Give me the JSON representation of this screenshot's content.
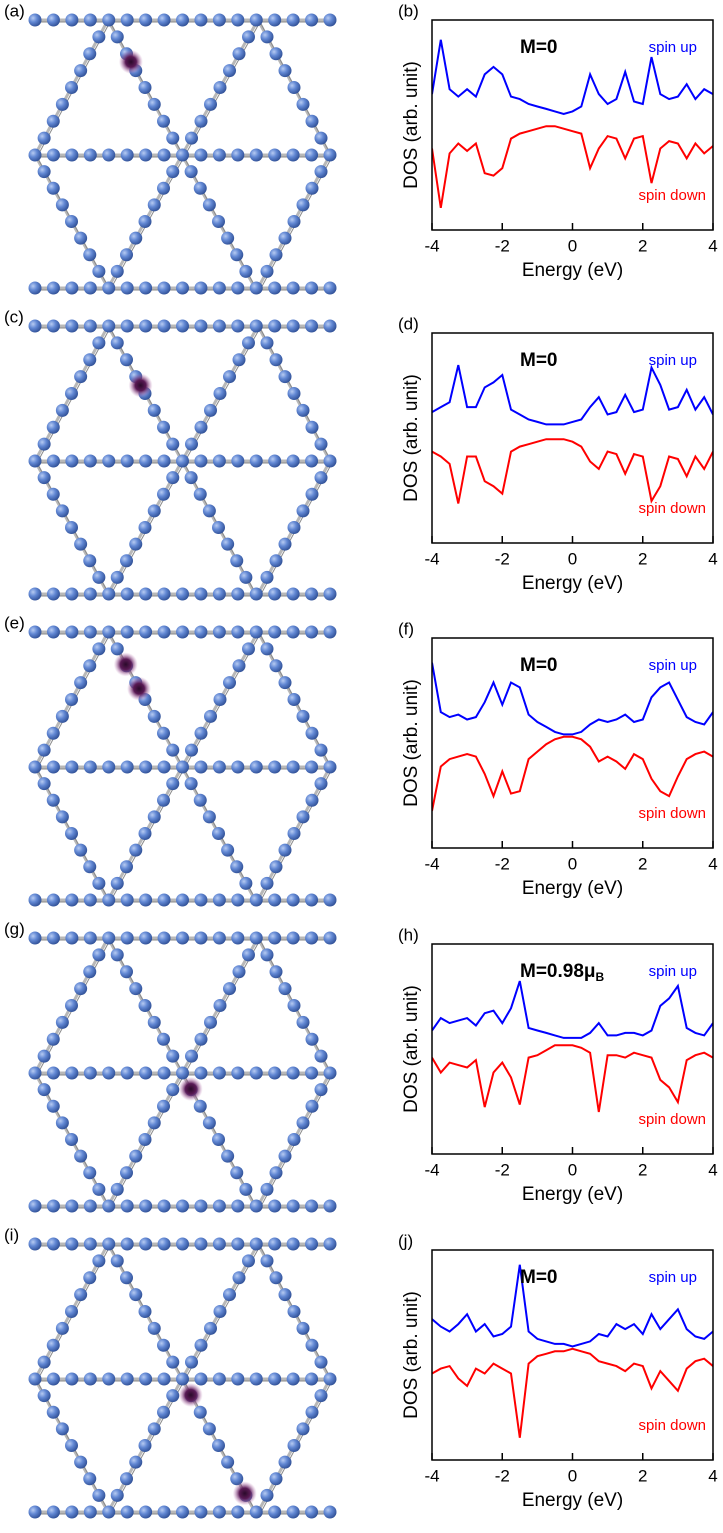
{
  "structure_labels": [
    "(a)",
    "(c)",
    "(e)",
    "(g)",
    "(i)"
  ],
  "chart_data": [
    {
      "type": "line",
      "panel_label": "(b)",
      "annotation": "M=0",
      "xlabel": "Energy (eV)",
      "ylabel": "DOS (arb. unit)",
      "x": [
        -4,
        -3.75,
        -3.5,
        -3.25,
        -3,
        -2.75,
        -2.5,
        -2.25,
        -2,
        -1.75,
        -1.5,
        -1.25,
        -1,
        -0.75,
        -0.5,
        -0.25,
        0,
        0.25,
        0.5,
        0.75,
        1,
        1.25,
        1.5,
        1.75,
        2,
        2.25,
        2.5,
        2.75,
        3,
        3.25,
        3.5,
        3.75,
        4
      ],
      "series": [
        {
          "name": "spin up",
          "color": "#0000ff",
          "values": [
            1.0,
            3.2,
            1.2,
            0.9,
            1.2,
            0.9,
            1.8,
            2.1,
            1.8,
            0.9,
            0.8,
            0.6,
            0.5,
            0.4,
            0.3,
            0.2,
            0.3,
            0.5,
            1.8,
            1.0,
            0.6,
            0.8,
            1.9,
            0.7,
            0.6,
            2.5,
            1.0,
            0.8,
            0.9,
            1.4,
            0.8,
            1.2,
            1.0
          ]
        },
        {
          "name": "spin down",
          "color": "#ff0000",
          "values": [
            -1.2,
            -3.6,
            -1.4,
            -1.0,
            -1.3,
            -1.0,
            -2.2,
            -2.3,
            -2.0,
            -0.8,
            -0.6,
            -0.5,
            -0.4,
            -0.3,
            -0.3,
            -0.4,
            -0.5,
            -0.6,
            -2.0,
            -1.2,
            -0.7,
            -0.8,
            -1.6,
            -0.8,
            -0.7,
            -2.6,
            -1.2,
            -0.9,
            -1.0,
            -1.6,
            -1.0,
            -1.4,
            -1.1
          ]
        }
      ],
      "xlim": [
        -4,
        4
      ],
      "xticks": [
        -4,
        -2,
        0,
        2,
        4
      ],
      "ylim": [
        -4.5,
        4
      ]
    },
    {
      "type": "line",
      "panel_label": "(d)",
      "annotation": "M=0",
      "xlabel": "Energy (eV)",
      "ylabel": "DOS (arb. unit)",
      "x": [
        -4,
        -3.75,
        -3.5,
        -3.25,
        -3,
        -2.75,
        -2.5,
        -2.25,
        -2,
        -1.75,
        -1.5,
        -1.25,
        -1,
        -0.75,
        -0.5,
        -0.25,
        0,
        0.25,
        0.5,
        0.75,
        1,
        1.25,
        1.5,
        1.75,
        2,
        2.25,
        2.5,
        2.75,
        3,
        3.25,
        3.5,
        3.75,
        4
      ],
      "series": [
        {
          "name": "spin up",
          "color": "#0000ff",
          "values": [
            0.8,
            1.0,
            1.2,
            2.7,
            1.0,
            1.0,
            1.8,
            2.0,
            2.3,
            0.9,
            0.7,
            0.5,
            0.4,
            0.3,
            0.3,
            0.3,
            0.4,
            0.5,
            1.0,
            1.4,
            0.7,
            0.8,
            1.5,
            0.8,
            0.9,
            2.6,
            1.9,
            0.9,
            1.0,
            1.7,
            0.9,
            1.4,
            0.7
          ]
        },
        {
          "name": "spin down",
          "color": "#ff0000",
          "values": [
            -0.8,
            -1.0,
            -1.3,
            -2.9,
            -1.0,
            -1.0,
            -2.0,
            -2.2,
            -2.5,
            -0.8,
            -0.6,
            -0.5,
            -0.4,
            -0.3,
            -0.3,
            -0.3,
            -0.4,
            -0.6,
            -1.2,
            -1.5,
            -0.8,
            -0.9,
            -1.7,
            -0.9,
            -1.0,
            -2.8,
            -2.2,
            -1.0,
            -1.1,
            -1.8,
            -1.0,
            -1.5,
            -0.8
          ]
        }
      ],
      "xlim": [
        -4,
        4
      ],
      "xticks": [
        -4,
        -2,
        0,
        2,
        4
      ],
      "ylim": [
        -4.5,
        4
      ]
    },
    {
      "type": "line",
      "panel_label": "(f)",
      "annotation": "M=0",
      "xlabel": "Energy (eV)",
      "ylabel": "DOS (arb. unit)",
      "x": [
        -4,
        -3.75,
        -3.5,
        -3.25,
        -3,
        -2.75,
        -2.5,
        -2.25,
        -2,
        -1.75,
        -1.5,
        -1.25,
        -1,
        -0.75,
        -0.5,
        -0.25,
        0,
        0.25,
        0.5,
        0.75,
        1,
        1.25,
        1.5,
        1.75,
        2,
        2.25,
        2.5,
        2.75,
        3,
        3.25,
        3.5,
        3.75,
        4
      ],
      "series": [
        {
          "name": "spin up",
          "color": "#0000ff",
          "values": [
            3.0,
            1.0,
            0.8,
            0.9,
            0.7,
            0.8,
            1.4,
            2.2,
            1.3,
            2.2,
            2.0,
            0.9,
            0.6,
            0.4,
            0.2,
            0.1,
            0.1,
            0.2,
            0.5,
            0.7,
            0.6,
            0.7,
            0.9,
            0.6,
            0.7,
            1.6,
            2.0,
            2.2,
            1.5,
            0.8,
            0.6,
            0.5,
            1.0
          ]
        },
        {
          "name": "spin down",
          "color": "#ff0000",
          "values": [
            -3.0,
            -1.2,
            -0.9,
            -0.8,
            -0.7,
            -0.8,
            -1.5,
            -2.4,
            -1.4,
            -2.3,
            -2.2,
            -0.9,
            -0.6,
            -0.3,
            -0.1,
            0,
            0,
            -0.1,
            -0.4,
            -1.0,
            -0.8,
            -1.0,
            -1.3,
            -0.7,
            -0.9,
            -1.7,
            -2.2,
            -2.4,
            -1.6,
            -0.9,
            -0.7,
            -0.6,
            -0.8
          ]
        }
      ],
      "xlim": [
        -4,
        4
      ],
      "xticks": [
        -4,
        -2,
        0,
        2,
        4
      ],
      "ylim": [
        -4.5,
        4
      ]
    },
    {
      "type": "line",
      "panel_label": "(h)",
      "annotation": "M=0.98μ",
      "annotation_subscript": "B",
      "xlabel": "Energy (eV)",
      "ylabel": "DOS (arb. unit)",
      "x": [
        -4,
        -3.75,
        -3.5,
        -3.25,
        -3,
        -2.75,
        -2.5,
        -2.25,
        -2,
        -1.75,
        -1.5,
        -1.25,
        -1,
        -0.75,
        -0.5,
        -0.25,
        0,
        0.25,
        0.5,
        0.75,
        1,
        1.25,
        1.5,
        1.75,
        2,
        2.25,
        2.5,
        2.75,
        3,
        3.25,
        3.5,
        3.75,
        4
      ],
      "series": [
        {
          "name": "spin up",
          "color": "#0000ff",
          "values": [
            0.5,
            1.0,
            0.8,
            0.9,
            1.0,
            0.7,
            1.2,
            1.3,
            0.8,
            1.4,
            2.5,
            0.6,
            0.5,
            0.4,
            0.3,
            0.2,
            0.2,
            0.2,
            0.4,
            0.8,
            0.3,
            0.3,
            0.4,
            0.4,
            0.3,
            0.5,
            1.5,
            1.8,
            2.3,
            0.6,
            0.4,
            0.3,
            0.8
          ]
        },
        {
          "name": "spin down",
          "color": "#ff0000",
          "values": [
            -0.6,
            -1.2,
            -0.8,
            -0.9,
            -1.0,
            -0.7,
            -2.6,
            -1.2,
            -0.8,
            -1.4,
            -2.5,
            -0.6,
            -0.5,
            -0.3,
            -0.1,
            -0.1,
            -0.1,
            -0.2,
            -0.4,
            -2.8,
            -0.5,
            -0.5,
            -0.6,
            -0.4,
            -0.5,
            -0.6,
            -1.5,
            -1.8,
            -2.4,
            -0.7,
            -0.5,
            -0.4,
            -0.6
          ]
        }
      ],
      "xlim": [
        -4,
        4
      ],
      "xticks": [
        -4,
        -2,
        0,
        2,
        4
      ],
      "ylim": [
        -4.5,
        4
      ]
    },
    {
      "type": "line",
      "panel_label": "(j)",
      "annotation": "M=0",
      "xlabel": "Energy (eV)",
      "ylabel": "DOS (arb. unit)",
      "x": [
        -4,
        -3.75,
        -3.5,
        -3.25,
        -3,
        -2.75,
        -2.5,
        -2.25,
        -2,
        -1.75,
        -1.5,
        -1.25,
        -1,
        -0.75,
        -0.5,
        -0.25,
        0,
        0.25,
        0.5,
        0.75,
        1,
        1.25,
        1.5,
        1.75,
        2,
        2.25,
        2.5,
        2.75,
        3,
        3.25,
        3.5,
        3.75,
        4
      ],
      "series": [
        {
          "name": "spin up",
          "color": "#0000ff",
          "values": [
            1.2,
            0.9,
            0.7,
            1.0,
            1.4,
            0.7,
            1.0,
            0.5,
            0.6,
            0.9,
            3.4,
            0.7,
            0.4,
            0.3,
            0.2,
            0.2,
            0.1,
            0.2,
            0.3,
            0.6,
            0.5,
            1.0,
            0.8,
            1.0,
            0.6,
            1.4,
            0.8,
            1.2,
            1.6,
            0.8,
            0.5,
            0.4,
            0.7
          ]
        },
        {
          "name": "spin down",
          "color": "#ff0000",
          "values": [
            -1.0,
            -0.8,
            -0.7,
            -1.2,
            -1.5,
            -0.8,
            -1.0,
            -0.6,
            -0.8,
            -1.0,
            -3.6,
            -0.6,
            -0.3,
            -0.2,
            -0.1,
            -0.1,
            0,
            -0.1,
            -0.2,
            -0.5,
            -0.6,
            -0.7,
            -0.9,
            -0.6,
            -0.7,
            -1.6,
            -0.9,
            -1.3,
            -1.7,
            -0.8,
            -0.5,
            -0.4,
            -0.7
          ]
        }
      ],
      "xlim": [
        -4,
        4
      ],
      "xticks": [
        -4,
        -2,
        0,
        2,
        4
      ],
      "ylim": [
        -4.5,
        4
      ]
    }
  ]
}
